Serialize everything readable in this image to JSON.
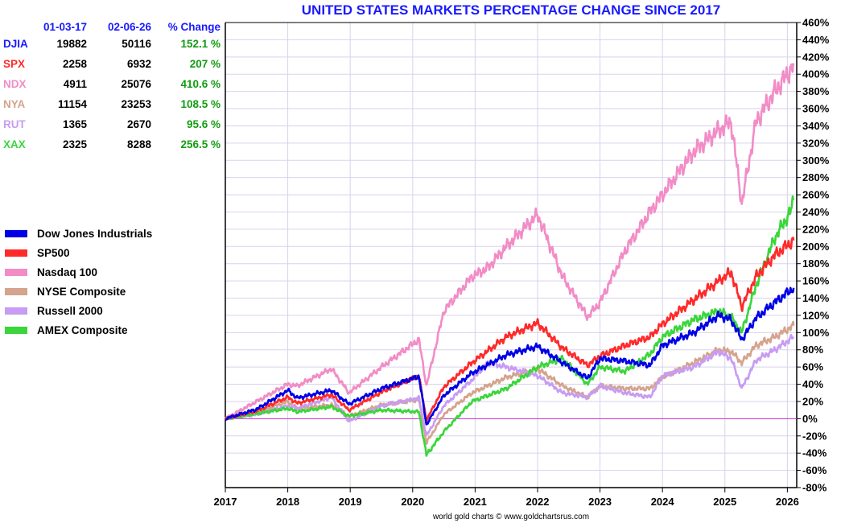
{
  "title": "UNITED STATES MARKETS PERCENTAGE CHANGE SINCE 2017",
  "footer": "world gold charts © www.goldchartsrus.com",
  "table": {
    "headers": [
      "",
      "01-03-17",
      "02-06-26",
      "% Change"
    ],
    "rows": [
      {
        "symbol": "DJIA",
        "start": "19882",
        "end": "50116",
        "change": "152.1 %",
        "color": "#1a1aff"
      },
      {
        "symbol": "SPX",
        "start": "2258",
        "end": "6932",
        "change": "207 %",
        "color": "#ff2a2a"
      },
      {
        "symbol": "NDX",
        "start": "4911",
        "end": "25076",
        "change": "410.6 %",
        "color": "#f28cc6"
      },
      {
        "symbol": "NYA",
        "start": "11154",
        "end": "23253",
        "change": "108.5 %",
        "color": "#d4a48c"
      },
      {
        "symbol": "RUT",
        "start": "1365",
        "end": "2670",
        "change": "95.6 %",
        "color": "#c79cf2"
      },
      {
        "symbol": "XAX",
        "start": "2325",
        "end": "8288",
        "change": "256.5 %",
        "color": "#3ad63a"
      }
    ]
  },
  "chart_data": {
    "type": "line",
    "title": "UNITED STATES MARKETS PERCENTAGE CHANGE SINCE 2017",
    "x_ticks": [
      "2017",
      "2018",
      "2019",
      "2020",
      "2021",
      "2022",
      "2023",
      "2024",
      "2025",
      "2026"
    ],
    "xlim": [
      2017.0,
      2026.15
    ],
    "ylim": [
      -80,
      460
    ],
    "y_ticks": [
      "460%",
      "440%",
      "420%",
      "400%",
      "380%",
      "360%",
      "340%",
      "320%",
      "300%",
      "280%",
      "260%",
      "240%",
      "220%",
      "200%",
      "180%",
      "160%",
      "140%",
      "120%",
      "100%",
      "80%",
      "60%",
      "40%",
      "20%",
      "0%",
      "-20%",
      "-40%",
      "-60%",
      "-80%"
    ],
    "y_tick_values": [
      460,
      440,
      420,
      400,
      380,
      360,
      340,
      320,
      300,
      280,
      260,
      240,
      220,
      200,
      180,
      160,
      140,
      120,
      100,
      80,
      60,
      40,
      20,
      0,
      -20,
      -40,
      -60,
      -80
    ],
    "grid": true,
    "legend_position": "left",
    "series": [
      {
        "name": "Dow Jones Industrials",
        "color": "#0000e6",
        "x": [
          2017.0,
          2017.5,
          2018.0,
          2018.15,
          2018.7,
          2018.98,
          2019.5,
          2020.1,
          2020.22,
          2020.5,
          2020.95,
          2021.5,
          2022.0,
          2022.4,
          2022.8,
          2023.0,
          2023.4,
          2023.8,
          2024.0,
          2024.5,
          2024.9,
          2025.1,
          2025.27,
          2025.5,
          2025.8,
          2026.1
        ],
        "values": [
          0,
          11,
          33,
          24,
          33,
          17,
          35,
          49,
          -7,
          27,
          53,
          74,
          84,
          65,
          47,
          70,
          67,
          62,
          85,
          100,
          120,
          115,
          92,
          117,
          135,
          152
        ]
      },
      {
        "name": "SP500",
        "color": "#ff2a2a",
        "x": [
          2017.0,
          2017.5,
          2018.0,
          2018.15,
          2018.7,
          2018.98,
          2019.5,
          2020.1,
          2020.22,
          2020.5,
          2020.95,
          2021.5,
          2022.0,
          2022.4,
          2022.8,
          2023.0,
          2023.4,
          2023.8,
          2024.0,
          2024.5,
          2024.9,
          2025.1,
          2025.27,
          2025.5,
          2025.8,
          2026.1
        ],
        "values": [
          0,
          9,
          25,
          18,
          28,
          10,
          31,
          50,
          -2,
          37,
          65,
          95,
          111,
          82,
          62,
          73,
          85,
          95,
          110,
          138,
          160,
          170,
          130,
          165,
          190,
          207
        ]
      },
      {
        "name": "Nasdaq 100",
        "color": "#f28cc6",
        "x": [
          2017.0,
          2017.5,
          2018.0,
          2018.15,
          2018.7,
          2018.98,
          2019.5,
          2020.1,
          2020.22,
          2020.5,
          2020.95,
          2021.2,
          2021.5,
          2022.0,
          2022.4,
          2022.8,
          2023.0,
          2023.4,
          2023.8,
          2024.0,
          2024.5,
          2024.9,
          2025.1,
          2025.27,
          2025.5,
          2025.8,
          2026.1
        ],
        "values": [
          0,
          20,
          40,
          38,
          58,
          30,
          60,
          92,
          38,
          125,
          165,
          175,
          200,
          237,
          165,
          118,
          135,
          195,
          240,
          260,
          310,
          335,
          345,
          250,
          345,
          380,
          410
        ]
      },
      {
        "name": "NYSE Composite",
        "color": "#d4a48c",
        "x": [
          2017.0,
          2017.5,
          2018.0,
          2018.15,
          2018.7,
          2018.98,
          2019.5,
          2020.1,
          2020.22,
          2020.5,
          2020.95,
          2021.5,
          2022.0,
          2022.4,
          2022.8,
          2023.0,
          2023.4,
          2023.8,
          2024.0,
          2024.5,
          2024.9,
          2025.1,
          2025.27,
          2025.5,
          2025.8,
          2026.1
        ],
        "values": [
          0,
          7,
          20,
          12,
          16,
          3,
          16,
          22,
          -28,
          5,
          30,
          48,
          58,
          38,
          25,
          38,
          35,
          35,
          48,
          65,
          80,
          78,
          65,
          85,
          95,
          108
        ]
      },
      {
        "name": "Russell 2000",
        "color": "#c79cf2",
        "x": [
          2017.0,
          2017.5,
          2018.0,
          2018.15,
          2018.7,
          2018.98,
          2019.5,
          2020.1,
          2020.22,
          2020.5,
          2020.95,
          2021.2,
          2021.5,
          2022.0,
          2022.4,
          2022.8,
          2023.0,
          2023.4,
          2023.8,
          2024.0,
          2024.5,
          2024.9,
          2025.1,
          2025.27,
          2025.5,
          2025.8,
          2026.1
        ],
        "values": [
          0,
          5,
          15,
          12,
          25,
          -3,
          15,
          24,
          -20,
          15,
          45,
          65,
          60,
          50,
          30,
          25,
          38,
          30,
          25,
          50,
          60,
          78,
          70,
          35,
          68,
          80,
          95
        ]
      },
      {
        "name": "AMEX Composite",
        "color": "#3ad63a",
        "x": [
          2017.0,
          2017.5,
          2018.0,
          2018.15,
          2018.7,
          2018.98,
          2019.5,
          2020.1,
          2020.22,
          2020.5,
          2020.95,
          2021.5,
          2022.0,
          2022.4,
          2022.8,
          2023.0,
          2023.4,
          2023.8,
          2024.0,
          2024.5,
          2024.9,
          2025.1,
          2025.27,
          2025.5,
          2025.8,
          2026.05,
          2026.1
        ],
        "values": [
          0,
          6,
          12,
          8,
          14,
          3,
          10,
          8,
          -42,
          -15,
          20,
          35,
          60,
          70,
          40,
          60,
          55,
          75,
          95,
          115,
          125,
          118,
          100,
          155,
          210,
          240,
          256
        ]
      }
    ]
  }
}
